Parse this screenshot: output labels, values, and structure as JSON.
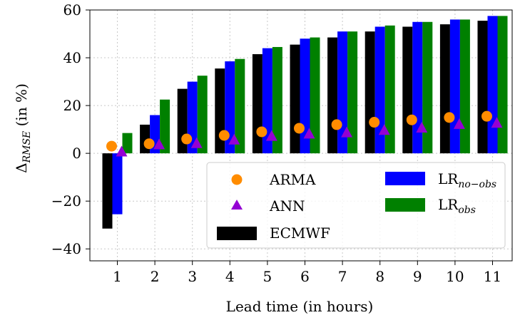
{
  "chart_data": {
    "type": "bar",
    "xlabel": "Lead time (in hours)",
    "ylabel": "Δ_RMSE (in %)",
    "ylabel_base": "Δ",
    "ylabel_sub": "RMSE",
    "ylabel_rest": " (in %)",
    "ylim": [
      -45,
      60
    ],
    "yticks": [
      -40,
      -20,
      0,
      20,
      40,
      60
    ],
    "grid": true,
    "legend_position": "lower-right",
    "categories": [
      "1",
      "2",
      "3",
      "4",
      "5",
      "6",
      "7",
      "8",
      "9",
      "10",
      "11"
    ],
    "series": [
      {
        "name": "ECMWF",
        "kind": "bar",
        "color": "#000000",
        "values": [
          -31.5,
          12,
          27,
          35.5,
          41.5,
          45.5,
          48.5,
          51,
          53,
          54,
          55.5
        ]
      },
      {
        "name": "LR_no-obs",
        "kind": "bar",
        "color": "#0000ff",
        "values": [
          -25.5,
          16,
          30,
          38.5,
          44,
          48,
          51,
          53,
          55,
          56,
          57.5
        ]
      },
      {
        "name": "LR_obs",
        "kind": "bar",
        "color": "#008000",
        "values": [
          8.5,
          22.5,
          32.5,
          39.5,
          44.5,
          48.5,
          51,
          53.5,
          55,
          56,
          57.5
        ]
      },
      {
        "name": "ARMA",
        "kind": "point",
        "marker": "circle",
        "color": "#ff8c00",
        "values": [
          3,
          4,
          6,
          7.5,
          9,
          10.5,
          12,
          13,
          14,
          15,
          15.5
        ]
      },
      {
        "name": "ANN",
        "kind": "point",
        "marker": "triangle",
        "color": "#9400d3",
        "values": [
          0.5,
          3.5,
          4,
          5.5,
          7,
          8,
          8.5,
          9.5,
          10.5,
          12,
          12.5
        ]
      }
    ],
    "legend": {
      "arma": "ARMA",
      "ann": "ANN",
      "ecmwf": "ECMWF",
      "lr_noobs_base": "LR",
      "lr_noobs_sub": "no−obs",
      "lr_obs_base": "LR",
      "lr_obs_sub": "obs"
    }
  }
}
